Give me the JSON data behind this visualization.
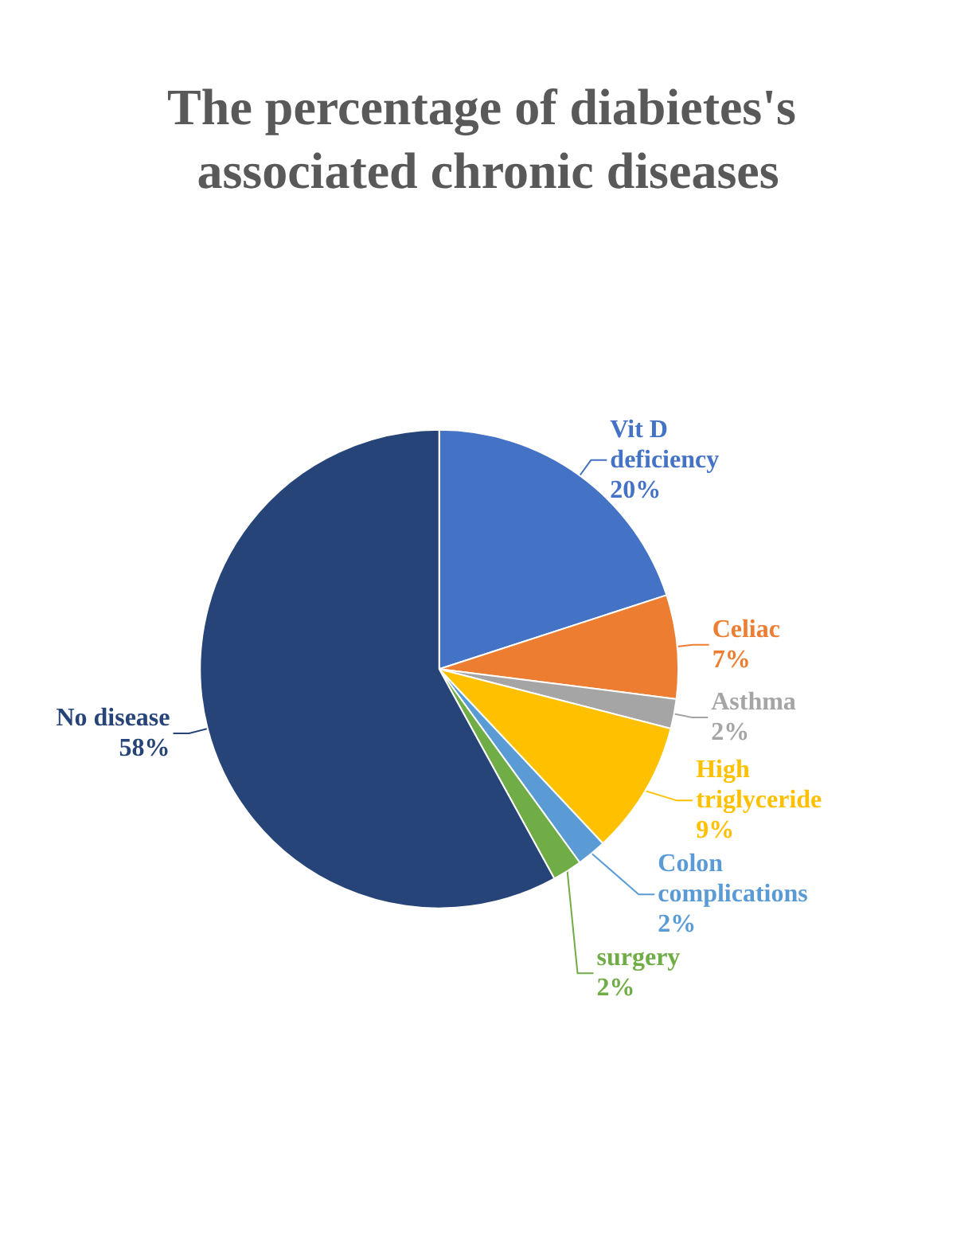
{
  "chart_data": {
    "type": "pie",
    "title": "The percentage of diabietes's associated chronic diseases",
    "categories": [
      "Vit D deficiency",
      "Celiac",
      "Asthma",
      "High triglyceride",
      "Colon complications",
      "surgery",
      "No disease"
    ],
    "values": [
      20,
      7,
      2,
      9,
      2,
      2,
      58
    ],
    "value_labels": [
      "20%",
      "7%",
      "2%",
      "9%",
      "2%",
      "2%",
      "58%"
    ],
    "colors": [
      "#4472c4",
      "#ed7d31",
      "#a5a5a5",
      "#ffc000",
      "#5b9bd5",
      "#70ad47",
      "#264478"
    ],
    "legend": false
  }
}
